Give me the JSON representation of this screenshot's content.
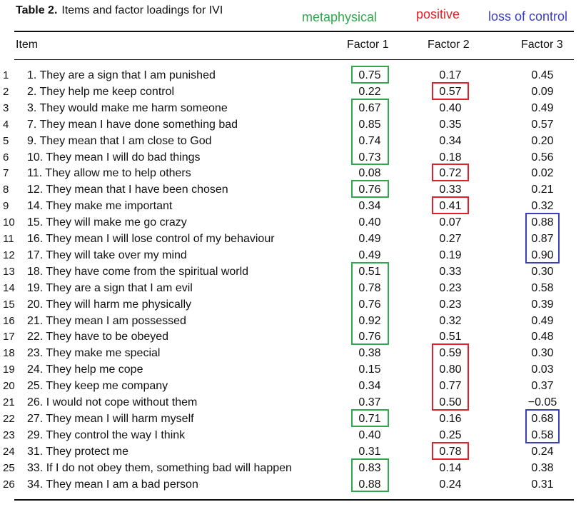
{
  "title": {
    "label": "Table 2.",
    "text": "Items and factor loadings for IVI"
  },
  "legend": {
    "metaphysical": {
      "text": "metaphysical",
      "color": "#2fa84f"
    },
    "positive": {
      "text": "positive",
      "color": "#e0202a"
    },
    "loss_of_control": {
      "text": "loss of control",
      "color": "#3b3fbf"
    }
  },
  "columns": {
    "item": "Item",
    "f1": "Factor 1",
    "f2": "Factor 2",
    "f3": "Factor 3"
  },
  "rows": [
    {
      "num": "1",
      "item": "1. They are a sign that I am punished",
      "f1": "0.75",
      "f2": "0.17",
      "f3": "0.45",
      "box": "f1"
    },
    {
      "num": "2",
      "item": "2. They help me keep control",
      "f1": "0.22",
      "f2": "0.57",
      "f3": "0.09",
      "box": "f2"
    },
    {
      "num": "3",
      "item": "3. They would make me harm someone",
      "f1": "0.67",
      "f2": "0.40",
      "f3": "0.49",
      "box": "f1"
    },
    {
      "num": "4",
      "item": "7. They mean I have done something bad",
      "f1": "0.85",
      "f2": "0.35",
      "f3": "0.57",
      "box": "f1"
    },
    {
      "num": "5",
      "item": "9. They mean that I am close to God",
      "f1": "0.74",
      "f2": "0.34",
      "f3": "0.20",
      "box": "f1"
    },
    {
      "num": "6",
      "item": "10. They mean I will do bad things",
      "f1": "0.73",
      "f2": "0.18",
      "f3": "0.56",
      "box": "f1"
    },
    {
      "num": "7",
      "item": "11. They allow me to help others",
      "f1": "0.08",
      "f2": "0.72",
      "f3": "0.02",
      "box": "f2"
    },
    {
      "num": "8",
      "item": "12. They mean that I have been chosen",
      "f1": "0.76",
      "f2": "0.33",
      "f3": "0.21",
      "box": "f1"
    },
    {
      "num": "9",
      "item": "14. They make me important",
      "f1": "0.34",
      "f2": "0.41",
      "f3": "0.32",
      "box": "f2"
    },
    {
      "num": "10",
      "item": "15. They will make me go crazy",
      "f1": "0.40",
      "f2": "0.07",
      "f3": "0.88",
      "box": "f3"
    },
    {
      "num": "11",
      "item": "16. They mean I will lose control of my behaviour",
      "f1": "0.49",
      "f2": "0.27",
      "f3": "0.87",
      "box": "f3"
    },
    {
      "num": "12",
      "item": "17. They will take over my mind",
      "f1": "0.49",
      "f2": "0.19",
      "f3": "0.90",
      "box": "f3"
    },
    {
      "num": "13",
      "item": "18. They have come from the spiritual world",
      "f1": "0.51",
      "f2": "0.33",
      "f3": "0.30",
      "box": "f1"
    },
    {
      "num": "14",
      "item": "19. They are a sign that I am evil",
      "f1": "0.78",
      "f2": "0.23",
      "f3": "0.58",
      "box": "f1"
    },
    {
      "num": "15",
      "item": "20. They will harm me physically",
      "f1": "0.76",
      "f2": "0.23",
      "f3": "0.39",
      "box": "f1"
    },
    {
      "num": "16",
      "item": "21. They mean I am possessed",
      "f1": "0.92",
      "f2": "0.32",
      "f3": "0.49",
      "box": "f1"
    },
    {
      "num": "17",
      "item": "22. They have to be obeyed",
      "f1": "0.76",
      "f2": "0.51",
      "f3": "0.48",
      "box": "f1"
    },
    {
      "num": "18",
      "item": "23. They make me special",
      "f1": "0.38",
      "f2": "0.59",
      "f3": "0.30",
      "box": "f2"
    },
    {
      "num": "19",
      "item": "24. They help me cope",
      "f1": "0.15",
      "f2": "0.80",
      "f3": "0.03",
      "box": "f2"
    },
    {
      "num": "20",
      "item": "25. They keep me company",
      "f1": "0.34",
      "f2": "0.77",
      "f3": "0.37",
      "box": "f2"
    },
    {
      "num": "21",
      "item": "26. I would not cope without them",
      "f1": "0.37",
      "f2": "0.50",
      "f3": "−0.05",
      "box": "f2"
    },
    {
      "num": "22",
      "item": "27. They mean I will harm myself",
      "f1": "0.71",
      "f2": "0.16",
      "f3": "0.68",
      "box": "f1,f3"
    },
    {
      "num": "23",
      "item": "29. They control the way I think",
      "f1": "0.40",
      "f2": "0.25",
      "f3": "0.58",
      "box": "f3"
    },
    {
      "num": "24",
      "item": "31. They protect me",
      "f1": "0.31",
      "f2": "0.78",
      "f3": "0.24",
      "box": "f2"
    },
    {
      "num": "25",
      "item": "33. If I do not obey them, something bad will happen",
      "f1": "0.83",
      "f2": "0.14",
      "f3": "0.38",
      "box": "f1"
    },
    {
      "num": "26",
      "item": "34. They mean I am a bad person",
      "f1": "0.88",
      "f2": "0.24",
      "f3": "0.31",
      "box": "f1"
    }
  ]
}
